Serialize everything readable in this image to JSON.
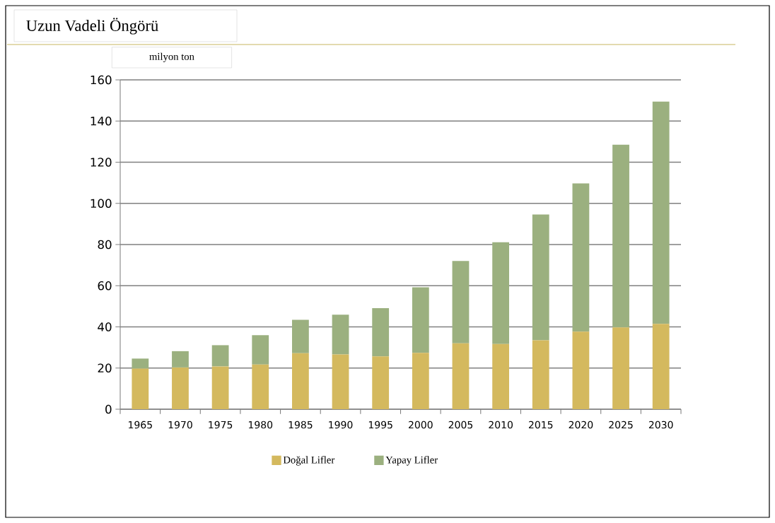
{
  "chart_data": {
    "type": "bar",
    "stacked": true,
    "title": "Uzun Vadeli Öngörü",
    "ylabel": "milyon ton",
    "categories": [
      "1965",
      "1970",
      "1975",
      "1980",
      "1985",
      "1990",
      "1995",
      "2000",
      "2005",
      "2010",
      "2015",
      "2020",
      "2025",
      "2030"
    ],
    "series": [
      {
        "name": "Doğal Lifler",
        "color": "#d4b95e",
        "values": [
          19.7,
          20.3,
          20.8,
          21.7,
          27.2,
          26.6,
          25.7,
          27.4,
          32.0,
          31.7,
          33.5,
          37.7,
          39.7,
          41.5
        ]
      },
      {
        "name": "Yapay Lifler",
        "color": "#9bb07f",
        "values": [
          4.9,
          7.9,
          10.3,
          14.3,
          16.2,
          19.3,
          23.4,
          31.8,
          40.0,
          49.4,
          61.1,
          72.0,
          88.8,
          107.9
        ]
      }
    ],
    "ylim": [
      0,
      160
    ],
    "yticks": [
      0,
      20,
      40,
      60,
      80,
      100,
      120,
      140,
      160
    ],
    "grid": "y",
    "legend": "bottom"
  }
}
